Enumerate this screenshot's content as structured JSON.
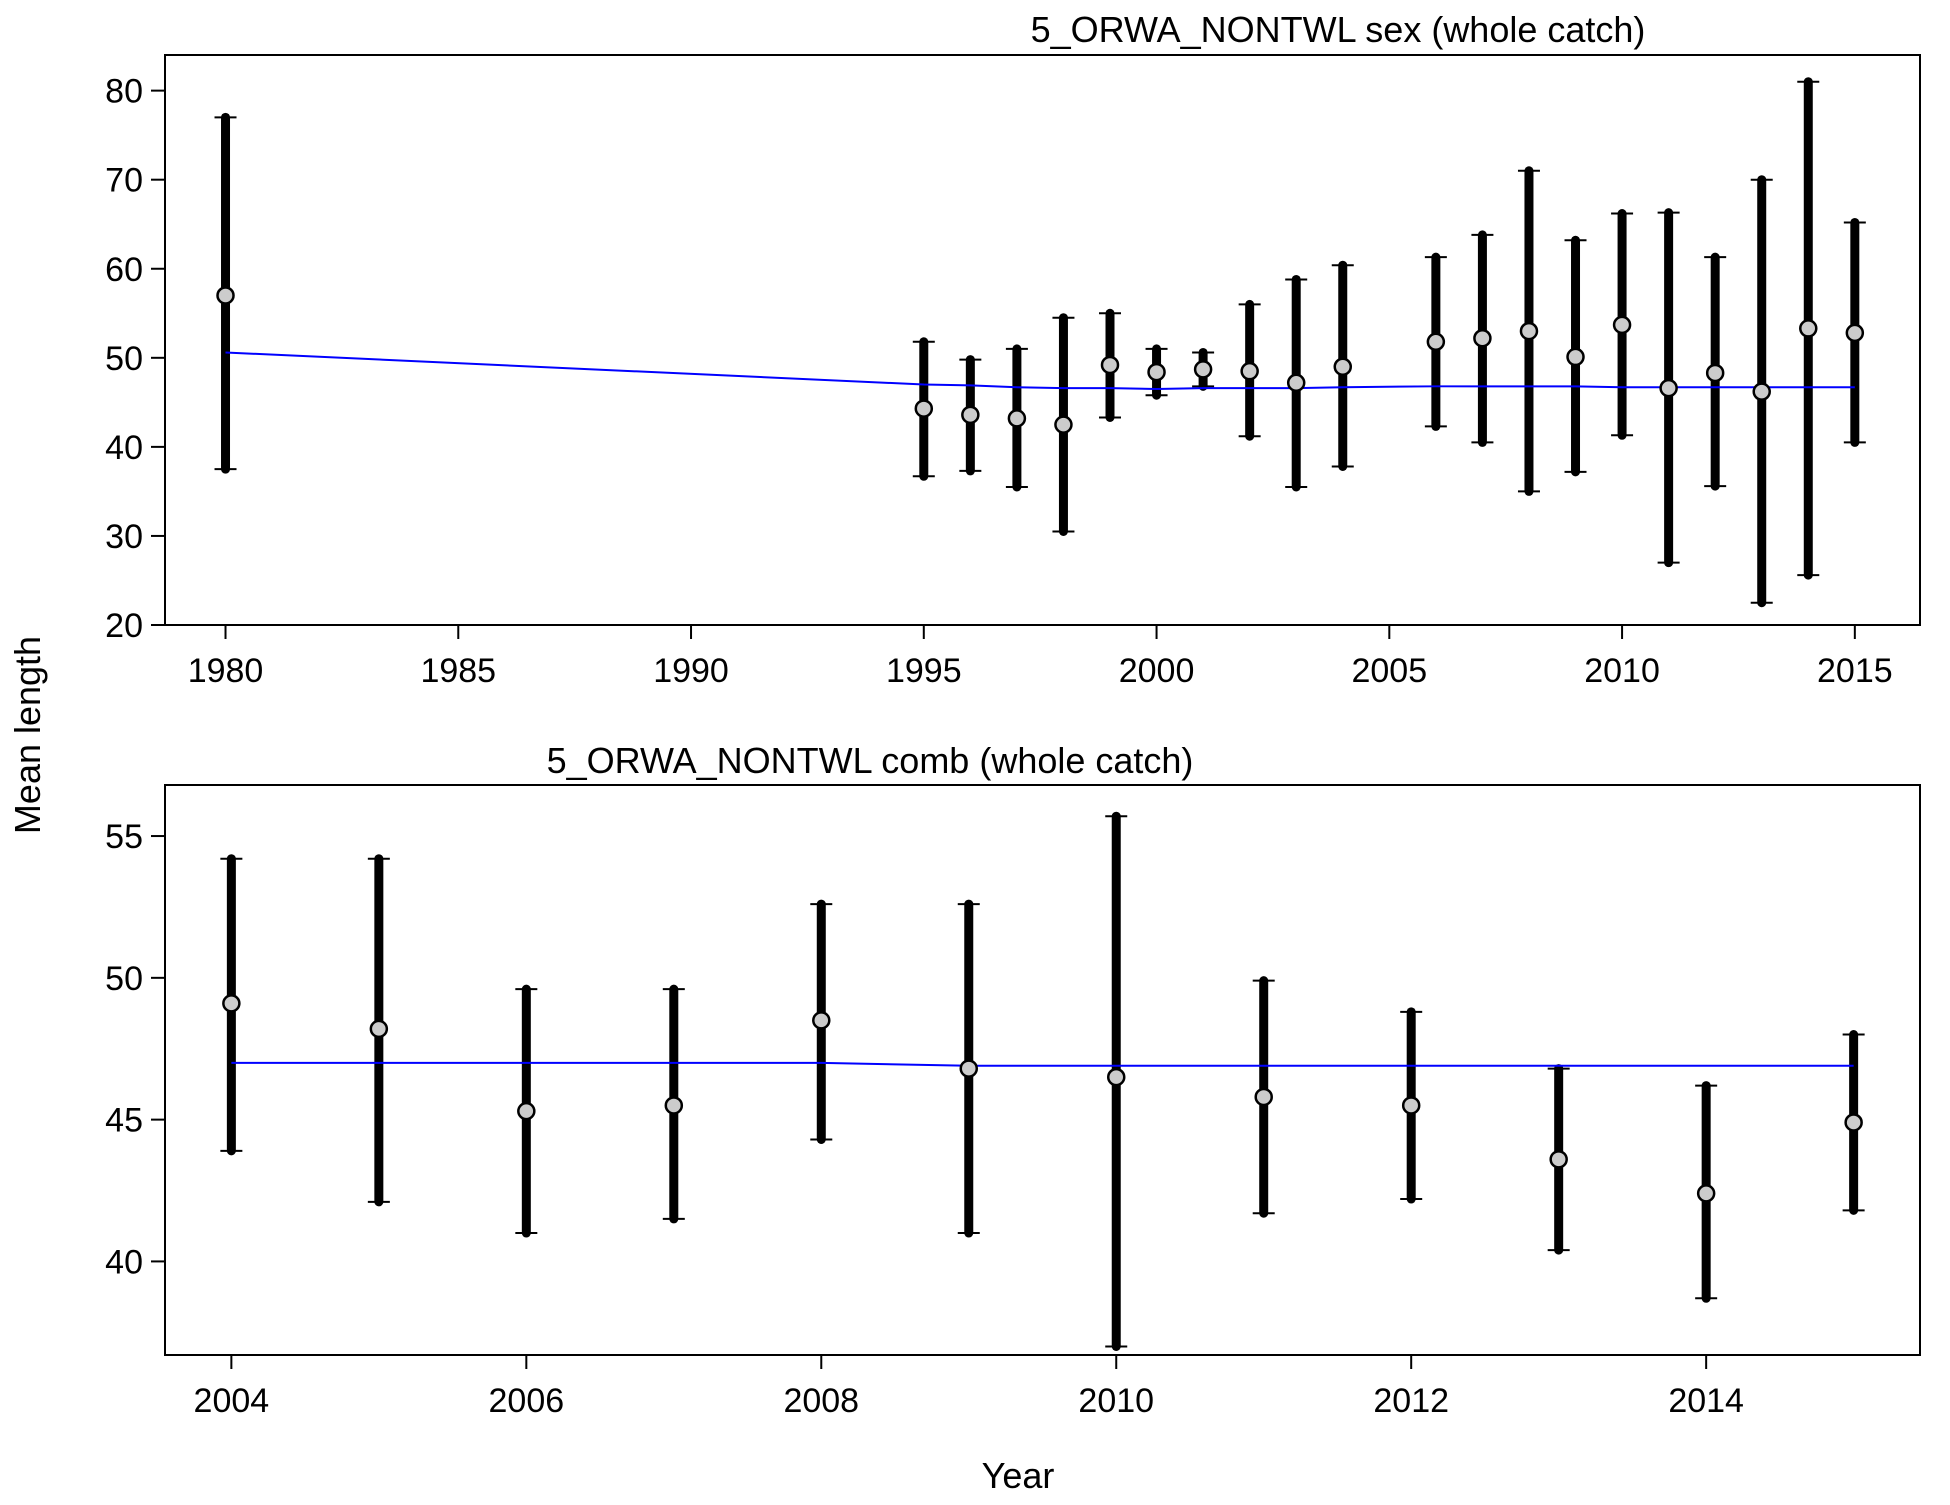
{
  "figure": {
    "ylabel": "Mean length",
    "xlabel": "Year",
    "colors": {
      "bar": "#000000",
      "point_fill": "#cccccc",
      "point_stroke": "#000000",
      "fit_line": "#0000ff",
      "axis": "#000000"
    }
  },
  "chart_data": [
    {
      "type": "scatter",
      "title": "5_ORWA_NONTWL sex (whole catch)",
      "xlim": [
        1978.7,
        2016.4
      ],
      "ylim": [
        20,
        84
      ],
      "x_ticks": [
        1980,
        1985,
        1990,
        1995,
        2000,
        2005,
        2010,
        2015
      ],
      "y_ticks": [
        20,
        30,
        40,
        50,
        60,
        70,
        80
      ],
      "grid": false,
      "legend": "none",
      "x": [
        1980,
        1995,
        1996,
        1997,
        1998,
        1999,
        2000,
        2001,
        2002,
        2003,
        2004,
        2006,
        2007,
        2008,
        2009,
        2010,
        2011,
        2012,
        2013,
        2014,
        2015
      ],
      "mean": [
        57.0,
        44.3,
        43.6,
        43.2,
        42.5,
        49.2,
        48.4,
        48.7,
        48.5,
        47.2,
        49.0,
        51.8,
        52.2,
        53.0,
        50.1,
        53.7,
        46.6,
        48.3,
        46.2,
        53.3,
        52.8
      ],
      "lower": [
        37.5,
        36.7,
        37.3,
        35.5,
        30.5,
        43.3,
        45.8,
        46.8,
        41.2,
        35.5,
        37.8,
        42.3,
        40.5,
        35.0,
        37.2,
        41.3,
        27.0,
        35.6,
        22.5,
        25.6,
        40.5
      ],
      "upper": [
        77.0,
        51.8,
        49.8,
        51.0,
        54.5,
        55.0,
        51.0,
        50.6,
        56.0,
        58.8,
        60.4,
        61.3,
        63.8,
        71.0,
        63.2,
        66.2,
        66.3,
        61.3,
        70.0,
        81.0,
        65.2
      ],
      "fit_x": [
        1980,
        1995,
        1996,
        1997,
        1998,
        1999,
        2000,
        2001,
        2002,
        2003,
        2004,
        2006,
        2007,
        2008,
        2009,
        2010,
        2011,
        2012,
        2013,
        2014,
        2015
      ],
      "fit_y": [
        50.6,
        47.0,
        46.9,
        46.7,
        46.6,
        46.6,
        46.5,
        46.6,
        46.6,
        46.6,
        46.7,
        46.8,
        46.8,
        46.8,
        46.8,
        46.7,
        46.7,
        46.7,
        46.7,
        46.7,
        46.7
      ]
    },
    {
      "type": "scatter",
      "title": "5_ORWA_NONTWL comb (whole catch)",
      "xlim": [
        2003.55,
        2015.45
      ],
      "ylim": [
        36.7,
        56.8
      ],
      "x_ticks": [
        2004,
        2006,
        2008,
        2010,
        2012,
        2014
      ],
      "y_ticks": [
        40,
        45,
        50,
        55
      ],
      "grid": false,
      "legend": "none",
      "x": [
        2004,
        2005,
        2006,
        2007,
        2008,
        2009,
        2010,
        2011,
        2012,
        2013,
        2014,
        2015
      ],
      "mean": [
        49.1,
        48.2,
        45.3,
        45.5,
        48.5,
        46.8,
        46.5,
        45.8,
        45.5,
        43.6,
        42.4,
        44.9
      ],
      "lower": [
        43.9,
        42.1,
        41.0,
        41.5,
        44.3,
        41.0,
        37.0,
        41.7,
        42.2,
        40.4,
        38.7,
        41.8
      ],
      "upper": [
        54.2,
        54.2,
        49.6,
        49.6,
        52.6,
        52.6,
        55.7,
        49.9,
        48.8,
        46.8,
        46.2,
        48.0
      ],
      "fit_x": [
        2004,
        2005,
        2006,
        2007,
        2008,
        2009,
        2010,
        2011,
        2012,
        2013,
        2014,
        2015
      ],
      "fit_y": [
        47.0,
        47.0,
        47.0,
        47.0,
        47.0,
        46.9,
        46.9,
        46.9,
        46.9,
        46.9,
        46.9,
        46.9
      ]
    }
  ]
}
